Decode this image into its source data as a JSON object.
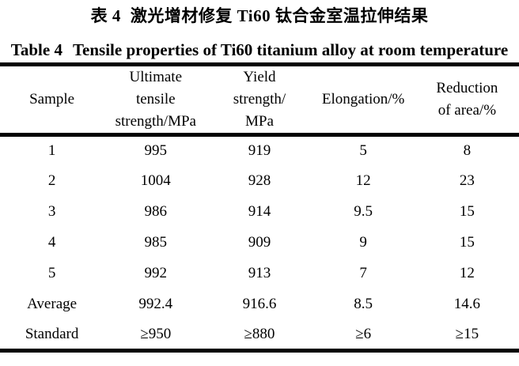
{
  "page": {
    "background_color": "#ffffff",
    "text_color": "#000000",
    "rule_color": "#000000"
  },
  "caption_cn": {
    "label": "表 4",
    "title": "激光增材修复 Ti60 钛合金室温拉伸结果"
  },
  "caption_en": {
    "label": "Table 4",
    "title": "Tensile properties of Ti60 titanium alloy at room temperature"
  },
  "table": {
    "headers": [
      "Sample",
      "Ultimate\ntensile\nstrength/MPa",
      "Yield\nstrength/\nMPa",
      "Elongation/%",
      "Reduction\nof area/%"
    ],
    "rows": [
      [
        "1",
        "995",
        "919",
        "5",
        "8"
      ],
      [
        "2",
        "1004",
        "928",
        "12",
        "23"
      ],
      [
        "3",
        "986",
        "914",
        "9.5",
        "15"
      ],
      [
        "4",
        "985",
        "909",
        "9",
        "15"
      ],
      [
        "5",
        "992",
        "913",
        "7",
        "12"
      ],
      [
        "Average",
        "992.4",
        "916.6",
        "8.5",
        "14.6"
      ],
      [
        "Standard",
        "≥950",
        "≥880",
        "≥6",
        "≥15"
      ]
    ]
  }
}
